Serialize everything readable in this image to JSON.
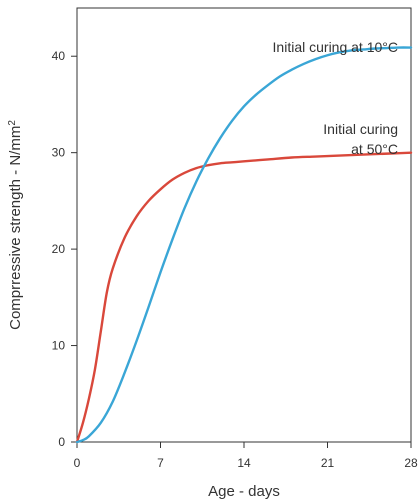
{
  "chart_data": {
    "type": "line",
    "xlabel": "Age - days",
    "ylabel": "Comprressive strength - N/mm",
    "ylabel_superscript": "2",
    "xlim": [
      0,
      28
    ],
    "ylim": [
      0,
      45
    ],
    "xticks": [
      0,
      7,
      14,
      21,
      28
    ],
    "yticks": [
      0,
      10,
      20,
      30,
      40
    ],
    "grid": false,
    "series": [
      {
        "name": "Initial curing at 10°C",
        "color": "#3aa6d6",
        "x": [
          0,
          0.5,
          1,
          2,
          3,
          4,
          5,
          6,
          7,
          8,
          9,
          10,
          11,
          12,
          13,
          14,
          15,
          16,
          17,
          18,
          19,
          20,
          21,
          22,
          23,
          24,
          25,
          26,
          27,
          28
        ],
        "y": [
          0,
          0.2,
          0.6,
          2.0,
          4.2,
          7.2,
          10.5,
          14.0,
          17.6,
          21.0,
          24.2,
          27.0,
          29.4,
          31.5,
          33.3,
          34.8,
          36.0,
          37.0,
          37.9,
          38.6,
          39.2,
          39.7,
          40.1,
          40.4,
          40.6,
          40.7,
          40.8,
          40.85,
          40.9,
          40.9
        ]
      },
      {
        "name": "Initial curing at 50°C",
        "color": "#d9483b",
        "x": [
          0,
          0.5,
          1,
          1.5,
          2,
          2.5,
          3,
          4,
          5,
          6,
          7,
          8,
          9,
          10,
          11,
          12,
          13,
          14,
          16,
          18,
          20,
          22,
          24,
          26,
          28
        ],
        "y": [
          0,
          2.0,
          4.5,
          7.5,
          11.5,
          15.5,
          18.0,
          21.2,
          23.4,
          25.0,
          26.2,
          27.2,
          27.9,
          28.4,
          28.7,
          28.9,
          29.0,
          29.1,
          29.3,
          29.5,
          29.6,
          29.7,
          29.8,
          29.9,
          30.0
        ]
      }
    ],
    "annotations": [
      {
        "lines": [
          "Initial curing at 10°C"
        ],
        "series": 0
      },
      {
        "lines": [
          "Initial curing",
          "at 50°C"
        ],
        "series": 1
      }
    ]
  }
}
